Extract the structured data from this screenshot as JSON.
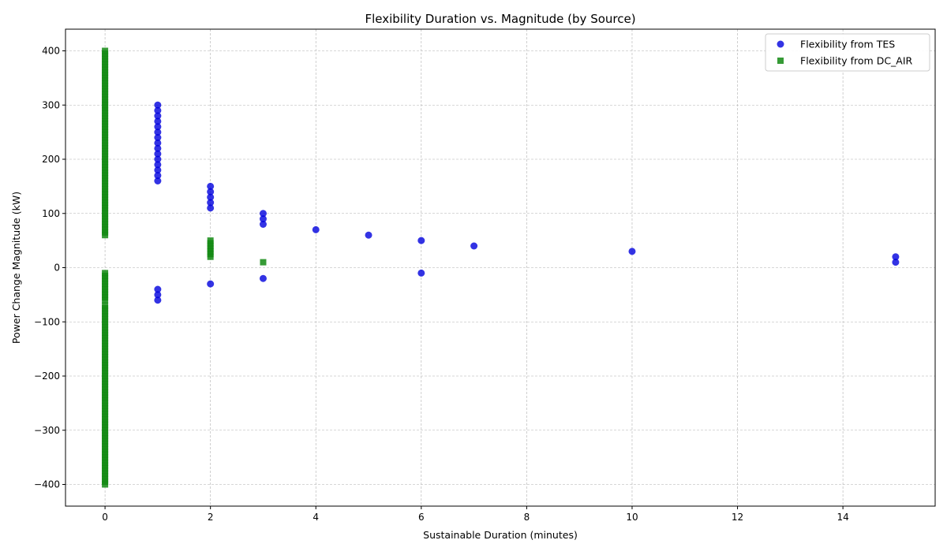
{
  "chart_data": {
    "type": "scatter",
    "title": "Flexibility Duration vs. Magnitude (by Source)",
    "xlabel": "Sustainable Duration (minutes)",
    "ylabel": "Power Change Magnitude (kW)",
    "xlim": [
      -0.75,
      15.75
    ],
    "ylim": [
      -440,
      440
    ],
    "xticks": [
      0,
      2,
      4,
      6,
      8,
      10,
      12,
      14
    ],
    "yticks": [
      -400,
      -300,
      -200,
      -100,
      0,
      100,
      200,
      300,
      400
    ],
    "xtick_labels": [
      "0",
      "2",
      "4",
      "6",
      "8",
      "10",
      "12",
      "14"
    ],
    "ytick_labels": [
      "−400",
      "−300",
      "−200",
      "−100",
      "0",
      "100",
      "200",
      "300",
      "400"
    ],
    "grid": true,
    "legend_position": "upper-right",
    "series": [
      {
        "name": "Flexibility from TES",
        "marker": "circle",
        "color": "#0000dd",
        "points": [
          [
            1,
            300
          ],
          [
            1,
            290
          ],
          [
            1,
            280
          ],
          [
            1,
            270
          ],
          [
            1,
            260
          ],
          [
            1,
            250
          ],
          [
            1,
            240
          ],
          [
            1,
            230
          ],
          [
            1,
            220
          ],
          [
            1,
            210
          ],
          [
            1,
            200
          ],
          [
            1,
            190
          ],
          [
            1,
            180
          ],
          [
            1,
            170
          ],
          [
            1,
            160
          ],
          [
            1,
            -40
          ],
          [
            1,
            -50
          ],
          [
            1,
            -60
          ],
          [
            2,
            150
          ],
          [
            2,
            140
          ],
          [
            2,
            130
          ],
          [
            2,
            120
          ],
          [
            2,
            110
          ],
          [
            2,
            -30
          ],
          [
            3,
            100
          ],
          [
            3,
            90
          ],
          [
            3,
            80
          ],
          [
            3,
            -20
          ],
          [
            4,
            70
          ],
          [
            5,
            60
          ],
          [
            6,
            50
          ],
          [
            6,
            -10
          ],
          [
            7,
            40
          ],
          [
            10,
            30
          ],
          [
            15,
            20
          ],
          [
            15,
            10
          ]
        ]
      },
      {
        "name": "Flexibility from DC_AIR",
        "marker": "square",
        "color": "#138a13",
        "points": [
          [
            0,
            400
          ],
          [
            0,
            395
          ],
          [
            0,
            390
          ],
          [
            0,
            385
          ],
          [
            0,
            380
          ],
          [
            0,
            375
          ],
          [
            0,
            370
          ],
          [
            0,
            365
          ],
          [
            0,
            360
          ],
          [
            0,
            355
          ],
          [
            0,
            350
          ],
          [
            0,
            345
          ],
          [
            0,
            340
          ],
          [
            0,
            335
          ],
          [
            0,
            330
          ],
          [
            0,
            325
          ],
          [
            0,
            320
          ],
          [
            0,
            315
          ],
          [
            0,
            310
          ],
          [
            0,
            305
          ],
          [
            0,
            300
          ],
          [
            0,
            295
          ],
          [
            0,
            290
          ],
          [
            0,
            285
          ],
          [
            0,
            280
          ],
          [
            0,
            275
          ],
          [
            0,
            270
          ],
          [
            0,
            265
          ],
          [
            0,
            260
          ],
          [
            0,
            255
          ],
          [
            0,
            250
          ],
          [
            0,
            245
          ],
          [
            0,
            240
          ],
          [
            0,
            235
          ],
          [
            0,
            230
          ],
          [
            0,
            225
          ],
          [
            0,
            220
          ],
          [
            0,
            215
          ],
          [
            0,
            210
          ],
          [
            0,
            205
          ],
          [
            0,
            200
          ],
          [
            0,
            195
          ],
          [
            0,
            190
          ],
          [
            0,
            185
          ],
          [
            0,
            180
          ],
          [
            0,
            175
          ],
          [
            0,
            170
          ],
          [
            0,
            165
          ],
          [
            0,
            160
          ],
          [
            0,
            155
          ],
          [
            0,
            150
          ],
          [
            0,
            145
          ],
          [
            0,
            140
          ],
          [
            0,
            135
          ],
          [
            0,
            130
          ],
          [
            0,
            125
          ],
          [
            0,
            120
          ],
          [
            0,
            115
          ],
          [
            0,
            110
          ],
          [
            0,
            105
          ],
          [
            0,
            100
          ],
          [
            0,
            95
          ],
          [
            0,
            90
          ],
          [
            0,
            85
          ],
          [
            0,
            80
          ],
          [
            0,
            75
          ],
          [
            0,
            70
          ],
          [
            0,
            65
          ],
          [
            0,
            60
          ],
          [
            0,
            -10
          ],
          [
            0,
            -15
          ],
          [
            0,
            -20
          ],
          [
            0,
            -25
          ],
          [
            0,
            -30
          ],
          [
            0,
            -35
          ],
          [
            0,
            -40
          ],
          [
            0,
            -45
          ],
          [
            0,
            -50
          ],
          [
            0,
            -55
          ],
          [
            0,
            -60
          ],
          [
            0,
            -70
          ],
          [
            0,
            -75
          ],
          [
            0,
            -80
          ],
          [
            0,
            -85
          ],
          [
            0,
            -90
          ],
          [
            0,
            -95
          ],
          [
            0,
            -100
          ],
          [
            0,
            -105
          ],
          [
            0,
            -110
          ],
          [
            0,
            -115
          ],
          [
            0,
            -120
          ],
          [
            0,
            -125
          ],
          [
            0,
            -130
          ],
          [
            0,
            -135
          ],
          [
            0,
            -140
          ],
          [
            0,
            -145
          ],
          [
            0,
            -150
          ],
          [
            0,
            -155
          ],
          [
            0,
            -160
          ],
          [
            0,
            -165
          ],
          [
            0,
            -170
          ],
          [
            0,
            -175
          ],
          [
            0,
            -180
          ],
          [
            0,
            -185
          ],
          [
            0,
            -190
          ],
          [
            0,
            -195
          ],
          [
            0,
            -200
          ],
          [
            0,
            -205
          ],
          [
            0,
            -210
          ],
          [
            0,
            -215
          ],
          [
            0,
            -220
          ],
          [
            0,
            -225
          ],
          [
            0,
            -230
          ],
          [
            0,
            -235
          ],
          [
            0,
            -240
          ],
          [
            0,
            -245
          ],
          [
            0,
            -250
          ],
          [
            0,
            -255
          ],
          [
            0,
            -260
          ],
          [
            0,
            -265
          ],
          [
            0,
            -270
          ],
          [
            0,
            -275
          ],
          [
            0,
            -280
          ],
          [
            0,
            -285
          ],
          [
            0,
            -290
          ],
          [
            0,
            -295
          ],
          [
            0,
            -300
          ],
          [
            0,
            -305
          ],
          [
            0,
            -310
          ],
          [
            0,
            -315
          ],
          [
            0,
            -320
          ],
          [
            0,
            -325
          ],
          [
            0,
            -330
          ],
          [
            0,
            -335
          ],
          [
            0,
            -340
          ],
          [
            0,
            -345
          ],
          [
            0,
            -350
          ],
          [
            0,
            -355
          ],
          [
            0,
            -360
          ],
          [
            0,
            -365
          ],
          [
            0,
            -370
          ],
          [
            0,
            -375
          ],
          [
            0,
            -380
          ],
          [
            0,
            -385
          ],
          [
            0,
            -390
          ],
          [
            0,
            -395
          ],
          [
            0,
            -400
          ],
          [
            2,
            50
          ],
          [
            2,
            45
          ],
          [
            2,
            40
          ],
          [
            2,
            35
          ],
          [
            2,
            30
          ],
          [
            2,
            25
          ],
          [
            2,
            20
          ],
          [
            3,
            10
          ]
        ]
      }
    ]
  }
}
